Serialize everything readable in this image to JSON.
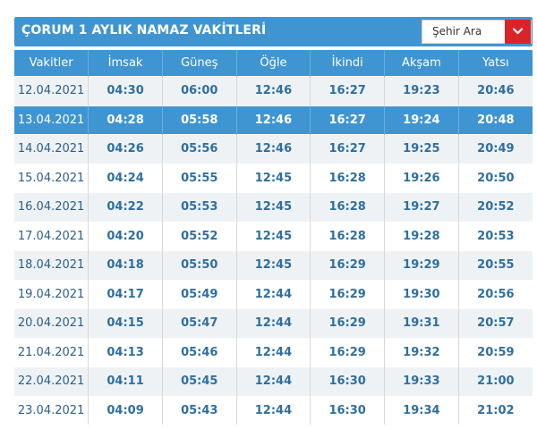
{
  "header": {
    "title": "ÇORUM 1 AYLIK NAMAZ VAKİTLERİ",
    "city_select_placeholder": "Şehir Ara",
    "dropdown_icon": "chevron-down-icon"
  },
  "colors": {
    "accent": "#3f95d1",
    "highlight_row": "#3f95d1",
    "dropdown_button": "#d9252a",
    "row_stripe": "#eef2f5",
    "cell_text": "#2f6f9f"
  },
  "table": {
    "columns": [
      "Vakitler",
      "İmsak",
      "Güneş",
      "Öğle",
      "İkindi",
      "Akşam",
      "Yatsı"
    ],
    "highlighted_row": 1,
    "rows": [
      [
        "12.04.2021",
        "04:30",
        "06:00",
        "12:46",
        "16:27",
        "19:23",
        "20:46"
      ],
      [
        "13.04.2021",
        "04:28",
        "05:58",
        "12:46",
        "16:27",
        "19:24",
        "20:48"
      ],
      [
        "14.04.2021",
        "04:26",
        "05:56",
        "12:46",
        "16:27",
        "19:25",
        "20:49"
      ],
      [
        "15.04.2021",
        "04:24",
        "05:55",
        "12:45",
        "16:28",
        "19:26",
        "20:50"
      ],
      [
        "16.04.2021",
        "04:22",
        "05:53",
        "12:45",
        "16:28",
        "19:27",
        "20:52"
      ],
      [
        "17.04.2021",
        "04:20",
        "05:52",
        "12:45",
        "16:28",
        "19:28",
        "20:53"
      ],
      [
        "18.04.2021",
        "04:18",
        "05:50",
        "12:45",
        "16:29",
        "19:29",
        "20:55"
      ],
      [
        "19.04.2021",
        "04:17",
        "05:49",
        "12:44",
        "16:29",
        "19:30",
        "20:56"
      ],
      [
        "20.04.2021",
        "04:15",
        "05:47",
        "12:44",
        "16:29",
        "19:31",
        "20:57"
      ],
      [
        "21.04.2021",
        "04:13",
        "05:46",
        "12:44",
        "16:29",
        "19:32",
        "20:59"
      ],
      [
        "22.04.2021",
        "04:11",
        "05:45",
        "12:44",
        "16:30",
        "19:33",
        "21:00"
      ],
      [
        "23.04.2021",
        "04:09",
        "05:43",
        "12:44",
        "16:30",
        "19:34",
        "21:02"
      ]
    ]
  }
}
